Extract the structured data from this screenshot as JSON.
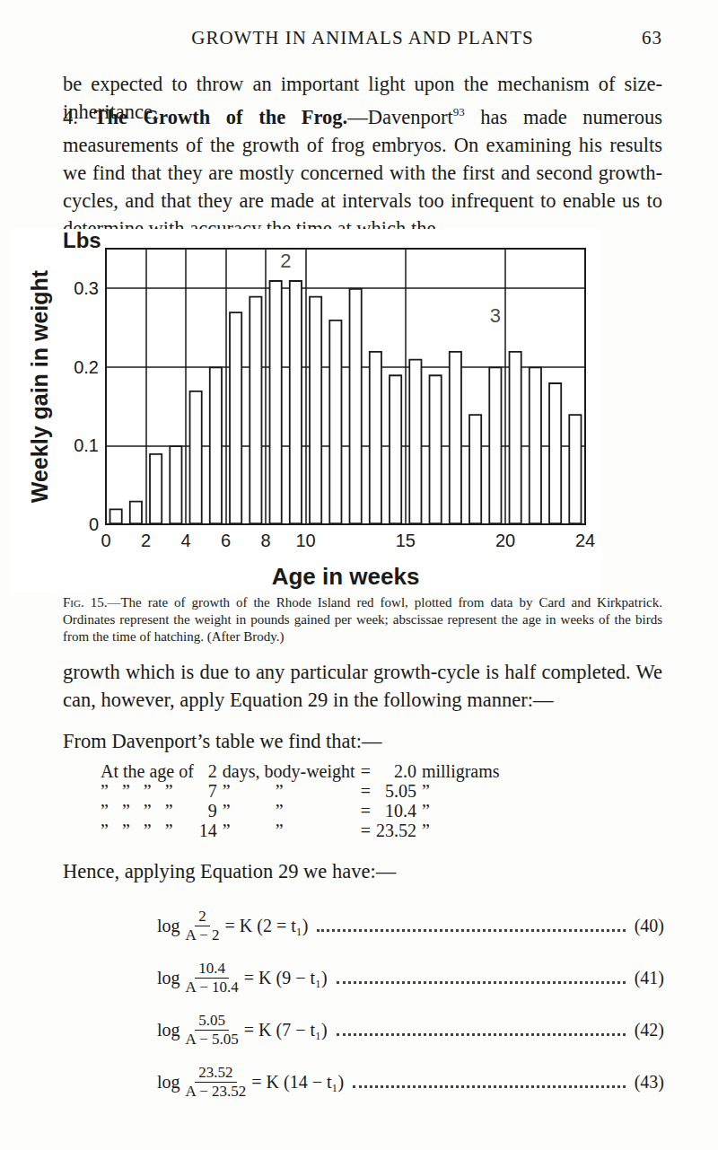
{
  "header": {
    "title": "GROWTH IN ANIMALS AND PLANTS",
    "page": "63"
  },
  "paragraph_1": "be expected to throw an important light upon the mechanism of size-inheritance.",
  "paragraph_2": {
    "number": "4.",
    "heading": "The Growth of the Frog.",
    "text_before_ref": "—Davenport",
    "ref": "93",
    "text": " has made numerous measurements of the growth of frog embryos. On examining his results we find that they are mostly concerned with the first and second growth-cycles, and that they are made at intervals too infrequent to enable us to determine with accuracy the time at which the"
  },
  "chart_data": {
    "type": "bar",
    "y_label": "Weekly gain in weight",
    "y_unit": "Lbs",
    "x_label": "Age in weeks",
    "x": [
      0.5,
      1.5,
      2.5,
      3.5,
      4.5,
      5.5,
      6.5,
      7.5,
      8.5,
      9.5,
      10.5,
      11.5,
      12.5,
      13.5,
      14.5,
      15.5,
      16.5,
      17.5,
      18.5,
      19.5,
      20.5,
      21.5,
      22.5,
      23.5
    ],
    "values": [
      0.02,
      0.03,
      0.09,
      0.1,
      0.17,
      0.2,
      0.27,
      0.29,
      0.31,
      0.31,
      0.29,
      0.26,
      0.3,
      0.22,
      0.19,
      0.21,
      0.19,
      0.22,
      0.14,
      0.2,
      0.22,
      0.2,
      0.18,
      0.14
    ],
    "color": "#ffffff",
    "xlim": [
      0,
      24
    ],
    "xticks": [
      0,
      2,
      4,
      6,
      8,
      10,
      15,
      20,
      24
    ],
    "ylim": [
      0,
      0.35
    ],
    "yticks": [
      0,
      0.1,
      0.2,
      0.3
    ],
    "grid": true,
    "annotations": [
      {
        "text": "2",
        "x": 9,
        "y": 0.335
      },
      {
        "text": "3",
        "x": 19.5,
        "y": 0.265
      }
    ]
  },
  "caption": {
    "label": "Fig. 15.",
    "text": "—The rate of growth of the Rhode Island red fowl, plotted from data by Card and Kirkpatrick. Ordinates represent the weight in pounds gained per week; abscissae represent the age in weeks of the birds from the time of hatching. (After Brody.)"
  },
  "paragraph_3": "growth which is due to any particular growth-cycle is half completed. We can, however, apply Equation 29 in the following manner:—",
  "paragraph_4": "From Davenport’s table we find that:—",
  "table": {
    "rows": [
      [
        "At the age of",
        "2",
        "days, body-weight",
        "=",
        "2.0",
        "milligrams"
      ],
      [
        "”   ”   ”   ”",
        "7",
        "”          ”",
        "=",
        "5.05",
        "”"
      ],
      [
        "”   ”   ”   ”",
        "9",
        "”          ”",
        "=",
        "10.4",
        "”"
      ],
      [
        "”   ”   ”   ”",
        "14",
        "”          ”",
        "=",
        "23.52",
        "”"
      ]
    ]
  },
  "paragraph_5": "Hence, applying Equation 29 we have:—",
  "equations": [
    {
      "lhs": "log",
      "numerator": "2",
      "denominator": "A − 2",
      "rhs": "= K (2 = t₁)",
      "number": "(40)"
    },
    {
      "lhs": "log",
      "numerator": "10.4",
      "denominator": "A − 10.4",
      "rhs": "= K (9 − t₁)",
      "number": "(41)"
    },
    {
      "lhs": "log",
      "numerator": "5.05",
      "denominator": "A − 5.05",
      "rhs": "= K (7 − t₁)",
      "number": "(42)"
    },
    {
      "lhs": "log",
      "numerator": "23.52",
      "denominator": "A − 23.52",
      "rhs": "= K (14 − t₁)",
      "number": "(43)"
    }
  ]
}
